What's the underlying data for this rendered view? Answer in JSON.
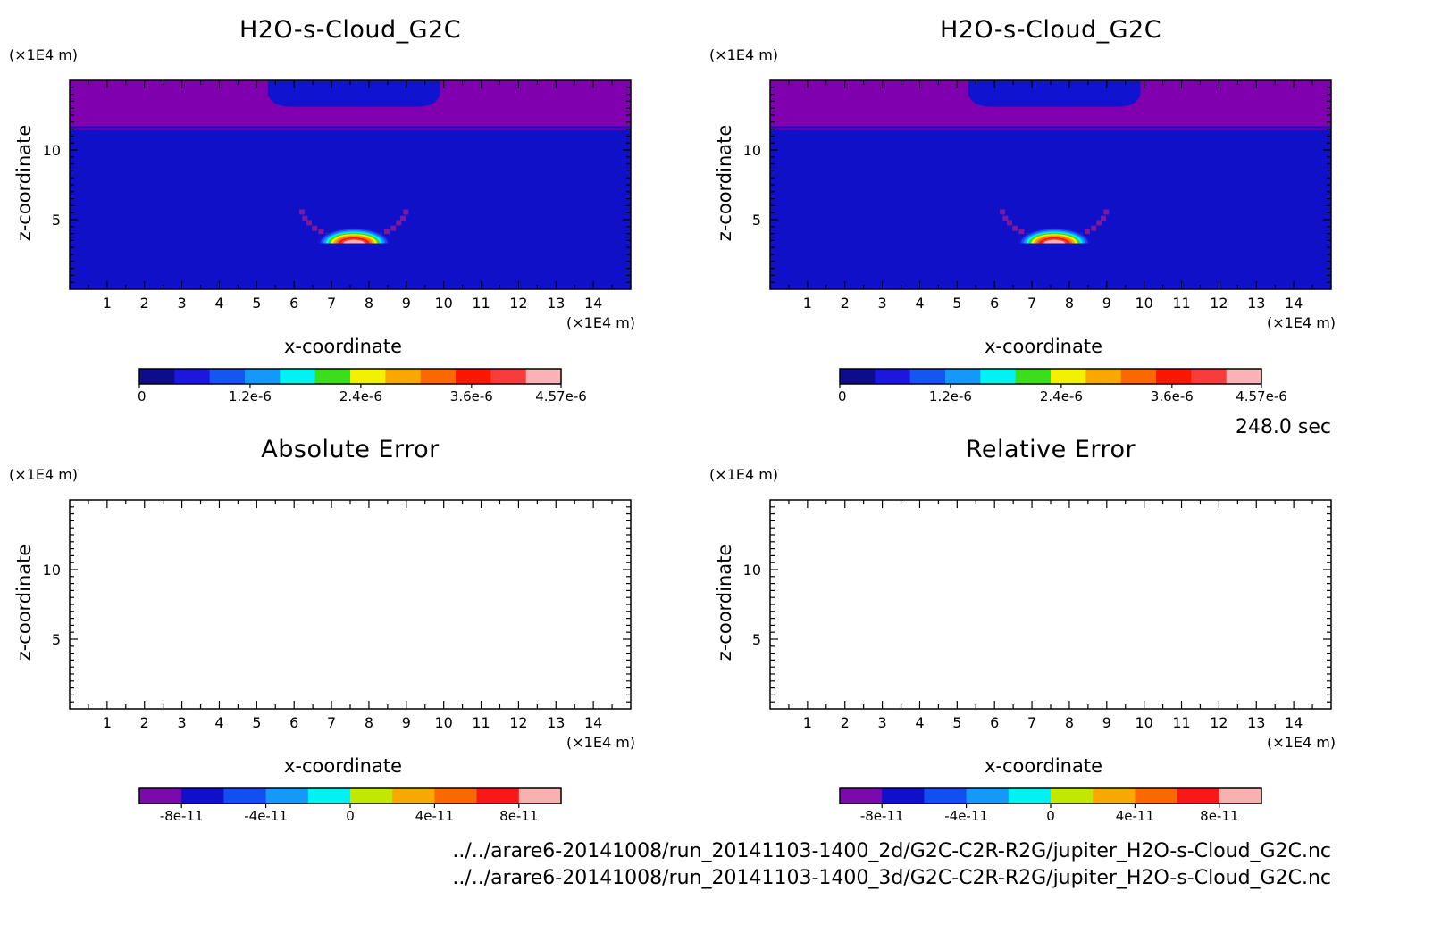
{
  "palette": {
    "sequential": [
      "#0c0c8c",
      "#1b18dc",
      "#1456f0",
      "#1698f8",
      "#00f2f2",
      "#3ade1c",
      "#f2f200",
      "#f8a800",
      "#f86a00",
      "#f81800",
      "#f83c3c",
      "#f8b4b4"
    ],
    "diverging": [
      "#7a0aaa",
      "#1010c8",
      "#1050f0",
      "#1598f8",
      "#00f2f2",
      "#c0e800",
      "#f8a800",
      "#f86a00",
      "#f81818",
      "#f8b0b0"
    ],
    "field_background": "#1010c8",
    "field_top_band": "#8000b0",
    "field_cap": "#1014d0"
  },
  "footer": {
    "time": "248.0 sec",
    "file1": "../../arare6-20141008/run_20141103-1400_2d/G2C-C2R-R2G/jupiter_H2O-s-Cloud_G2C.nc",
    "file2": "../../arare6-20141008/run_20141103-1400_3d/G2C-C2R-R2G/jupiter_H2O-s-Cloud_G2C.nc"
  },
  "chart_data": [
    {
      "type": "heatmap",
      "title": "H2O-s-Cloud_G2C",
      "xlabel": "x-coordinate",
      "ylabel": "z-coordinate",
      "x_unit": "(×1E4 m)",
      "y_unit": "(×1E4 m)",
      "xlim": [
        0,
        15
      ],
      "ylim": [
        0,
        15
      ],
      "xticks": [
        1,
        2,
        3,
        4,
        5,
        6,
        7,
        8,
        9,
        10,
        11,
        12,
        13,
        14
      ],
      "yticks": [
        5,
        10
      ],
      "filled": true,
      "colorbar": {
        "min": 0,
        "max": 4.57e-06,
        "tick_labels": [
          "0",
          "1.2e-6",
          "2.4e-6",
          "3.6e-6",
          "4.57e-6"
        ],
        "tick_values": [
          0,
          1.2e-06,
          2.4e-06,
          3.6e-06,
          4.57e-06
        ]
      },
      "features": {
        "top_band_z": [
          11.7,
          15
        ],
        "cap_x": [
          5.3,
          9.9
        ],
        "cap_z": [
          13.1,
          15
        ],
        "cloud_center_x": 7.6,
        "cloud_base_z": 3.3,
        "cloud_peak": 4.57e-06
      }
    },
    {
      "type": "heatmap",
      "title": "H2O-s-Cloud_G2C",
      "xlabel": "x-coordinate",
      "ylabel": "z-coordinate",
      "x_unit": "(×1E4 m)",
      "y_unit": "(×1E4 m)",
      "xlim": [
        0,
        15
      ],
      "ylim": [
        0,
        15
      ],
      "xticks": [
        1,
        2,
        3,
        4,
        5,
        6,
        7,
        8,
        9,
        10,
        11,
        12,
        13,
        14
      ],
      "yticks": [
        5,
        10
      ],
      "filled": true,
      "colorbar": {
        "min": 0,
        "max": 4.57e-06,
        "tick_labels": [
          "0",
          "1.2e-6",
          "2.4e-6",
          "3.6e-6",
          "4.57e-6"
        ],
        "tick_values": [
          0,
          1.2e-06,
          2.4e-06,
          3.6e-06,
          4.57e-06
        ]
      },
      "features": {
        "top_band_z": [
          11.7,
          15
        ],
        "cap_x": [
          5.3,
          9.9
        ],
        "cap_z": [
          13.1,
          15
        ],
        "cloud_center_x": 7.6,
        "cloud_base_z": 3.3,
        "cloud_peak": 4.57e-06
      }
    },
    {
      "type": "heatmap",
      "title": "Absolute Error",
      "xlabel": "x-coordinate",
      "ylabel": "z-coordinate",
      "x_unit": "(×1E4 m)",
      "y_unit": "(×1E4 m)",
      "xlim": [
        0,
        15
      ],
      "ylim": [
        0,
        15
      ],
      "xticks": [
        1,
        2,
        3,
        4,
        5,
        6,
        7,
        8,
        9,
        10,
        11,
        12,
        13,
        14
      ],
      "yticks": [
        5,
        10
      ],
      "filled": false,
      "colorbar": {
        "min": -1e-10,
        "max": 1e-10,
        "tick_labels": [
          "-8e-11",
          "-4e-11",
          "0",
          "4e-11",
          "8e-11"
        ],
        "tick_values": [
          -8e-11,
          -4e-11,
          0,
          4e-11,
          8e-11
        ]
      }
    },
    {
      "type": "heatmap",
      "title": "Relative Error",
      "xlabel": "x-coordinate",
      "ylabel": "z-coordinate",
      "x_unit": "(×1E4 m)",
      "y_unit": "(×1E4 m)",
      "xlim": [
        0,
        15
      ],
      "ylim": [
        0,
        15
      ],
      "xticks": [
        1,
        2,
        3,
        4,
        5,
        6,
        7,
        8,
        9,
        10,
        11,
        12,
        13,
        14
      ],
      "yticks": [
        5,
        10
      ],
      "filled": false,
      "colorbar": {
        "min": -1e-10,
        "max": 1e-10,
        "tick_labels": [
          "-8e-11",
          "-4e-11",
          "0",
          "4e-11",
          "8e-11"
        ],
        "tick_values": [
          -8e-11,
          -4e-11,
          0,
          4e-11,
          8e-11
        ]
      }
    }
  ]
}
